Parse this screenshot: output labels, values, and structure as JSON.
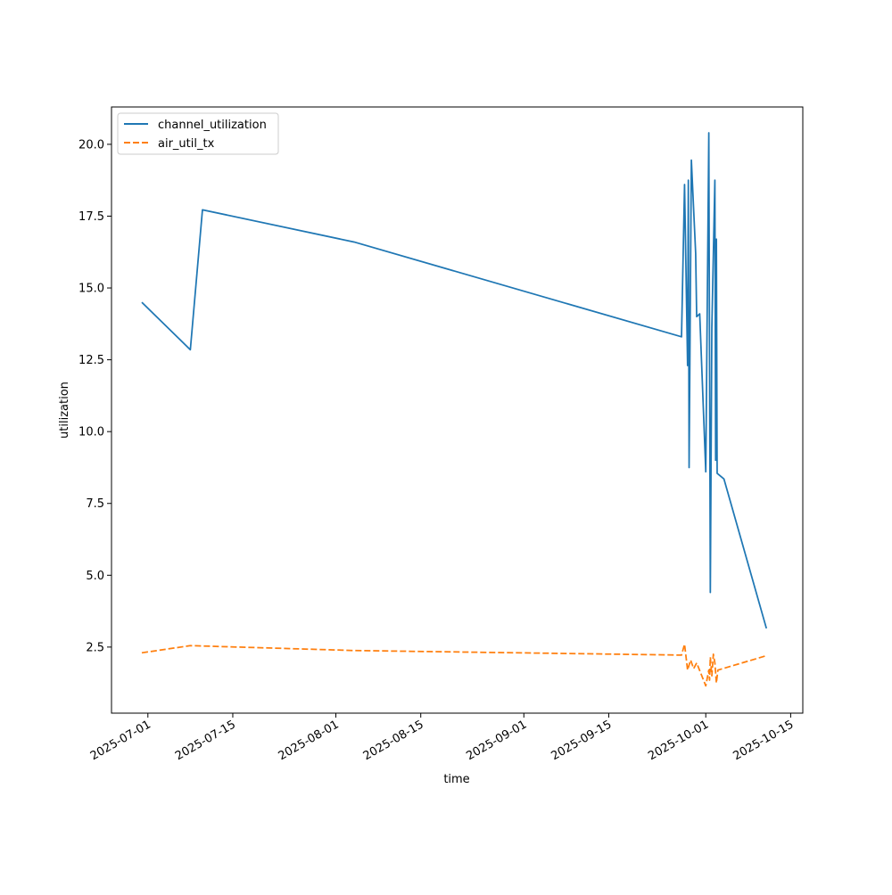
{
  "chart_data": {
    "type": "line",
    "title": "",
    "xlabel": "time",
    "ylabel": "utilization",
    "x_type": "date",
    "xlim": [
      "2025-06-25",
      "2025-10-17"
    ],
    "ylim": [
      0.2,
      21.3
    ],
    "grid": false,
    "legend_position": "upper-left",
    "x_tick_labels": [
      "2025-07-01",
      "2025-07-15",
      "2025-08-01",
      "2025-08-15",
      "2025-09-01",
      "2025-09-15",
      "2025-10-01",
      "2025-10-15"
    ],
    "y_tick_labels": [
      "2.5",
      "5.0",
      "7.5",
      "10.0",
      "12.5",
      "15.0",
      "17.5",
      "20.0"
    ],
    "series": [
      {
        "name": "channel_utilization",
        "color": "#1f77b4",
        "style": "solid",
        "points": [
          [
            "2025-06-30",
            14.5
          ],
          [
            "2025-07-08",
            12.85
          ],
          [
            "2025-07-10",
            17.72
          ],
          [
            "2025-08-04",
            16.6
          ],
          [
            "2025-09-27",
            13.3
          ],
          [
            "2025-09-27T12:00",
            18.6
          ],
          [
            "2025-09-28",
            12.3
          ],
          [
            "2025-09-28T03:00",
            18.75
          ],
          [
            "2025-09-28T06:00",
            8.75
          ],
          [
            "2025-09-28T15:00",
            19.45
          ],
          [
            "2025-09-29T08:00",
            16.2
          ],
          [
            "2025-09-29T12:00",
            14.0
          ],
          [
            "2025-09-30",
            14.1
          ],
          [
            "2025-10-01",
            8.6
          ],
          [
            "2025-10-01T12:00",
            20.4
          ],
          [
            "2025-10-01T18:00",
            4.4
          ],
          [
            "2025-10-02",
            13.6
          ],
          [
            "2025-10-02T12:00",
            18.75
          ],
          [
            "2025-10-02T15:00",
            9.0
          ],
          [
            "2025-10-02T18:00",
            16.7
          ],
          [
            "2025-10-02T21:00",
            8.55
          ],
          [
            "2025-10-04",
            8.35
          ],
          [
            "2025-10-11",
            3.15
          ]
        ]
      },
      {
        "name": "air_util_tx",
        "color": "#ff7f0e",
        "style": "dashed",
        "points": [
          [
            "2025-06-30",
            2.3
          ],
          [
            "2025-07-08",
            2.55
          ],
          [
            "2025-08-04",
            2.38
          ],
          [
            "2025-09-27",
            2.22
          ],
          [
            "2025-09-27T12:00",
            2.6
          ],
          [
            "2025-09-28",
            1.7
          ],
          [
            "2025-09-28T12:00",
            2.05
          ],
          [
            "2025-09-29",
            1.75
          ],
          [
            "2025-09-29T12:00",
            1.95
          ],
          [
            "2025-10-01",
            1.15
          ],
          [
            "2025-10-01T12:00",
            1.7
          ],
          [
            "2025-10-01T15:00",
            1.35
          ],
          [
            "2025-10-01T18:00",
            2.15
          ],
          [
            "2025-10-02",
            1.5
          ],
          [
            "2025-10-02T06:00",
            2.25
          ],
          [
            "2025-10-02T12:00",
            1.95
          ],
          [
            "2025-10-02T18:00",
            1.25
          ],
          [
            "2025-10-03",
            1.7
          ],
          [
            "2025-10-11",
            2.2
          ]
        ]
      }
    ]
  }
}
